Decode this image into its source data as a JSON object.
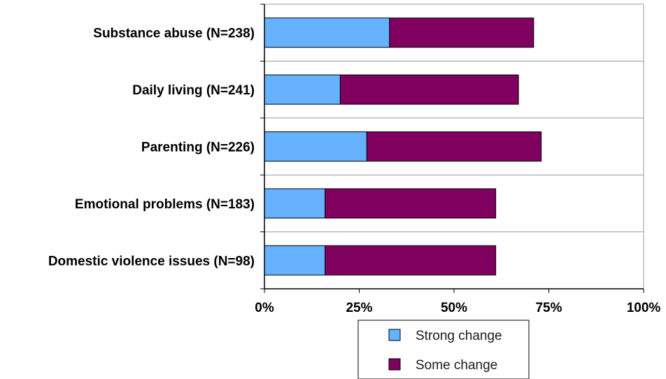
{
  "chart_data": {
    "type": "bar",
    "orientation": "horizontal",
    "stacked": true,
    "categories": [
      "Substance abuse (N=238)",
      "Daily living (N=241)",
      "Parenting (N=226)",
      "Emotional problems (N=183)",
      "Domestic violence issues (N=98)"
    ],
    "series": [
      {
        "name": "Strong change",
        "color": "#66b2ff",
        "values": [
          33,
          20,
          27,
          16,
          16
        ]
      },
      {
        "name": "Some change",
        "color": "#800060",
        "values": [
          38,
          47,
          46,
          45,
          45
        ]
      }
    ],
    "xlim": [
      0,
      100
    ],
    "xticks": [
      0,
      25,
      50,
      75,
      100
    ],
    "xtick_labels": [
      "0%",
      "25%",
      "50%",
      "75%",
      "100%"
    ],
    "grid": "horizontal separators between categories",
    "legend": {
      "placement": "bottom-center",
      "entries": [
        "Strong change",
        "Some change"
      ]
    }
  }
}
